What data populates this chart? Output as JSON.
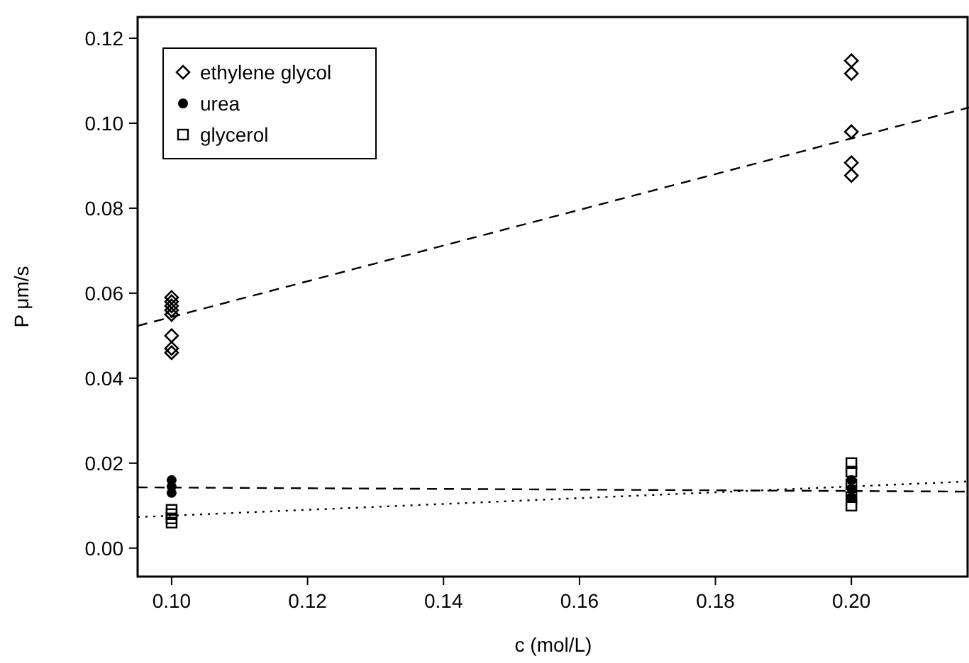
{
  "chart_data": {
    "type": "scatter",
    "xlabel": "c (mol/L)",
    "ylabel": "P μm/s",
    "xlim": [
      0.095,
      0.2173
    ],
    "ylim": [
      -0.0067,
      0.125
    ],
    "xticks": [
      {
        "value": 0.1,
        "label": "0.10"
      },
      {
        "value": 0.12,
        "label": "0.12"
      },
      {
        "value": 0.14,
        "label": "0.14"
      },
      {
        "value": 0.16,
        "label": "0.16"
      },
      {
        "value": 0.18,
        "label": "0.18"
      },
      {
        "value": 0.2,
        "label": "0.20"
      }
    ],
    "yticks": [
      {
        "value": 0,
        "label": "0.00"
      },
      {
        "value": 0.02,
        "label": "0.02"
      },
      {
        "value": 0.04,
        "label": "0.04"
      },
      {
        "value": 0.06,
        "label": "0.06"
      },
      {
        "value": 0.08,
        "label": "0.08"
      },
      {
        "value": 0.1,
        "label": "0.10"
      },
      {
        "value": 0.12,
        "label": "0.12"
      }
    ],
    "grid": false,
    "legend": "top left",
    "series": [
      {
        "name": "ethylene glycol",
        "marker": "diamond",
        "color": "#000000",
        "x": [
          0.1,
          0.1,
          0.1,
          0.1,
          0.1,
          0.1,
          0.1,
          0.1,
          0.2,
          0.2,
          0.2,
          0.2,
          0.2
        ],
        "values": [
          0.059,
          0.058,
          0.057,
          0.056,
          0.055,
          0.05,
          0.047,
          0.046,
          0.1147,
          0.1117,
          0.098,
          0.0907,
          0.0877
        ]
      },
      {
        "name": "urea",
        "marker": "circle",
        "color": "#000000",
        "x": [
          0.1,
          0.1,
          0.1,
          0.2,
          0.2,
          0.2
        ],
        "values": [
          0.016,
          0.0145,
          0.013,
          0.016,
          0.014,
          0.012
        ]
      },
      {
        "name": "glycerol",
        "marker": "square",
        "color": "#000000",
        "x": [
          0.1,
          0.1,
          0.1,
          0.1,
          0.2,
          0.2,
          0.2,
          0.2,
          0.2
        ],
        "values": [
          0.009,
          0.008,
          0.007,
          0.006,
          0.02,
          0.018,
          0.015,
          0.012,
          0.01
        ]
      },
      {
        "type": "line",
        "line_style": "dashed",
        "marker": "none",
        "color": "#000000",
        "x": [
          0.095,
          0.2173
        ],
        "values": [
          0.0523,
          0.1037
        ]
      },
      {
        "type": "line",
        "line_style": "dashed",
        "marker": "none",
        "color": "#000000",
        "x": [
          0.095,
          0.2173
        ],
        "values": [
          0.0143,
          0.0133
        ]
      },
      {
        "type": "line",
        "line_style": "dotted",
        "marker": "none",
        "color": "#000000",
        "x": [
          0.095,
          0.2173
        ],
        "values": [
          0.0073,
          0.0157
        ]
      }
    ]
  }
}
